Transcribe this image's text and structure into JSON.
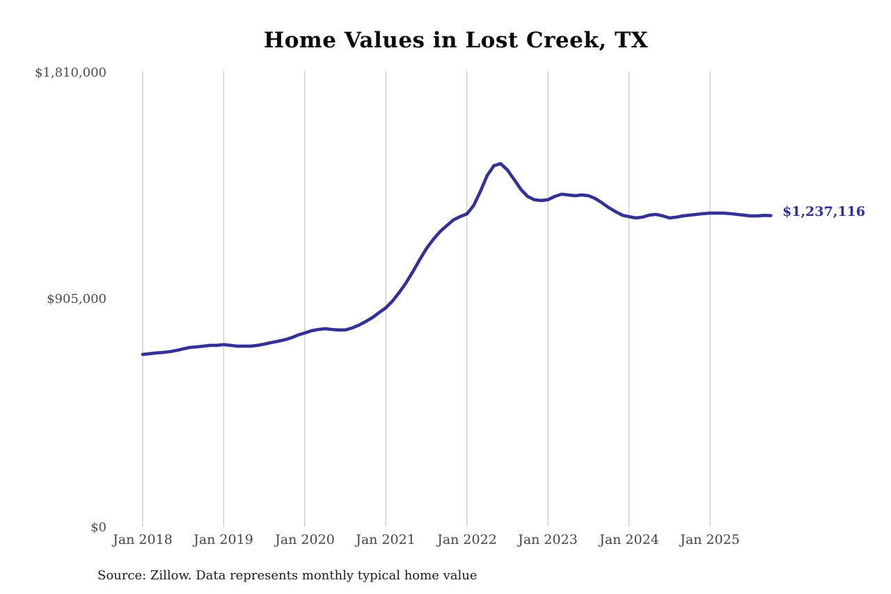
{
  "page": {
    "background_color": "#ffffff"
  },
  "chart_data": {
    "type": "line",
    "title": "Home Values in Lost Creek, TX",
    "source_note": "Source: Zillow. Data represents monthly typical home value",
    "xlabel": "",
    "ylabel": "",
    "x_frequency": "monthly",
    "x_start": "Jan 2018",
    "x_end": "Oct 2025",
    "x_tick_labels": [
      "Jan 2018",
      "Jan 2019",
      "Jan 2020",
      "Jan 2021",
      "Jan 2022",
      "Jan 2023",
      "Jan 2024",
      "Jan 2025"
    ],
    "y_tick_labels": [
      "$1,810,000",
      "$905,000",
      "$0"
    ],
    "ylim": [
      0,
      1810000
    ],
    "grid": "vertical-only",
    "legend_position": "none",
    "line_color": "#343195",
    "grid_color": "#c8c8c8",
    "final_value": 1237116,
    "final_value_label": "$1,237,116",
    "series": [
      {
        "name": "Monthly typical home value",
        "values_by_year": {
          "2018": [
            687000,
            690000,
            693000,
            695000,
            698000,
            703000,
            709000,
            715000,
            717000,
            720000,
            723000,
            723000
          ],
          "2019": [
            726000,
            723000,
            720000,
            720000,
            720000,
            723000,
            728000,
            734000,
            739000,
            745000,
            753000,
            764000
          ],
          "2020": [
            772000,
            781000,
            786000,
            789000,
            786000,
            784000,
            784000,
            792000,
            803000,
            817000,
            833000,
            853000
          ],
          "2021": [
            872000,
            899000,
            933000,
            971000,
            1015000,
            1062000,
            1106000,
            1142000,
            1173000,
            1197000,
            1220000,
            1233000
          ],
          "2022": [
            1244000,
            1277000,
            1333000,
            1396000,
            1435000,
            1443000,
            1418000,
            1380000,
            1341000,
            1313000,
            1300000,
            1297000
          ],
          "2023": [
            1300000,
            1313000,
            1322000,
            1319000,
            1316000,
            1319000,
            1316000,
            1305000,
            1288000,
            1269000,
            1253000,
            1239000
          ],
          "2024": [
            1233000,
            1228000,
            1231000,
            1239000,
            1242000,
            1236000,
            1228000,
            1231000,
            1236000,
            1239000,
            1242000,
            1245000
          ],
          "2025": [
            1247000,
            1247000,
            1247000,
            1245000,
            1242000,
            1239000,
            1236000,
            1236000,
            1238000,
            1237116
          ]
        }
      }
    ]
  }
}
